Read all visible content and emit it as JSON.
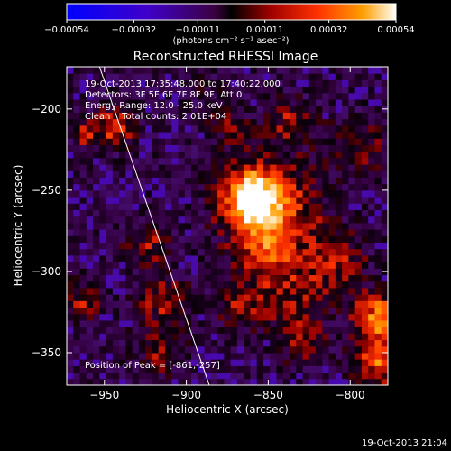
{
  "chart_data": {
    "type": "heatmap",
    "title": "Reconstructed RHESSI Image",
    "xlabel": "Heliocentric X (arcsec)",
    "ylabel": "Heliocentric Y (arcsec)",
    "xlim": [
      -973,
      -777
    ],
    "ylim": [
      -370,
      -174
    ],
    "xticks": [
      -950,
      -900,
      -850,
      -800
    ],
    "yticks": [
      -200,
      -250,
      -300,
      -350
    ],
    "xtick_labels": [
      "−950",
      "−900",
      "−850",
      "−800"
    ],
    "ytick_labels": [
      "−200",
      "−250",
      "−300",
      "−350"
    ],
    "colorbar": {
      "range": [
        -0.00054,
        0.00054
      ],
      "tick_values": [
        -0.00054,
        -0.00032,
        -0.00011,
        0.00011,
        0.00032,
        0.00054
      ],
      "tick_labels": [
        "−0.00054",
        "−0.00032",
        "−0.00011",
        "0.00011",
        "0.00032",
        "0.00054"
      ],
      "unit_label": "(photons cm⁻² s⁻¹ asec⁻²)"
    },
    "annotations": [
      "19-Oct-2013 17:35:48.000 to 17:40:22.000",
      "Detectors: 3F 5F 6F 7F 8F 9F, Att 0",
      "Energy Range: 12.0 - 25.0 keV",
      "Clean    Total counts: 2.01E+04"
    ],
    "peak_label": "Position of Peak = [-861,-257]",
    "peak": [
      -861,
      -257
    ],
    "limb_line": [
      [
        -953,
        -174
      ],
      [
        -886,
        -370
      ]
    ],
    "sources": [
      {
        "x": -860,
        "y": -257,
        "r": 12,
        "v": 1.0
      },
      {
        "x": -850,
        "y": -265,
        "r": 22,
        "v": 0.45
      },
      {
        "x": -853,
        "y": -290,
        "r": 12,
        "v": 0.32
      },
      {
        "x": -868,
        "y": -322,
        "r": 10,
        "v": 0.35
      },
      {
        "x": -840,
        "y": -318,
        "r": 14,
        "v": 0.32
      },
      {
        "x": -838,
        "y": -210,
        "r": 10,
        "v": 0.32
      },
      {
        "x": -875,
        "y": -212,
        "r": 9,
        "v": 0.25
      },
      {
        "x": -925,
        "y": -285,
        "r": 10,
        "v": 0.35
      },
      {
        "x": -917,
        "y": -320,
        "r": 11,
        "v": 0.32
      },
      {
        "x": -965,
        "y": -320,
        "r": 8,
        "v": 0.35
      },
      {
        "x": -918,
        "y": -350,
        "r": 10,
        "v": 0.32
      },
      {
        "x": -812,
        "y": -296,
        "r": 14,
        "v": 0.35
      },
      {
        "x": -785,
        "y": -330,
        "r": 10,
        "v": 0.7
      },
      {
        "x": -785,
        "y": -358,
        "r": 10,
        "v": 0.6
      },
      {
        "x": -946,
        "y": -213,
        "r": 9,
        "v": 0.5
      },
      {
        "x": -965,
        "y": -218,
        "r": 5,
        "v": 0.4
      },
      {
        "x": -795,
        "y": -225,
        "r": 14,
        "v": 0.22
      },
      {
        "x": -890,
        "y": -190,
        "r": 9,
        "v": 0.12
      },
      {
        "x": -830,
        "y": -345,
        "r": 10,
        "v": 0.3
      }
    ],
    "date_stamp": "19-Oct-2013 21:04"
  }
}
